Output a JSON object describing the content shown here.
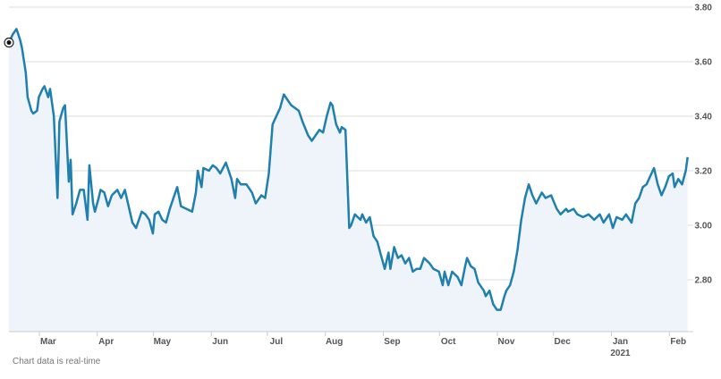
{
  "chart_data": {
    "type": "line",
    "color": "#1f7fae",
    "fill": "#eef4fa",
    "grid": true,
    "annotation": "2021",
    "footer": "Chart data is real-time",
    "xlim": [
      -21,
      345
    ],
    "ylim": [
      2.61,
      3.8
    ],
    "yticks": [
      {
        "value": 2.8,
        "label": "2.80"
      },
      {
        "value": 3,
        "label": "3.00"
      },
      {
        "value": 3.2,
        "label": "3.20"
      },
      {
        "value": 3.4,
        "label": "3.40"
      },
      {
        "value": 3.6,
        "label": "3.60"
      },
      {
        "value": 3.8,
        "label": "3.80"
      }
    ],
    "xticks": [
      {
        "value": 0,
        "label": "Mar"
      },
      {
        "value": 31,
        "label": "Apr"
      },
      {
        "value": 61,
        "label": "May"
      },
      {
        "value": 92,
        "label": "Jun"
      },
      {
        "value": 122,
        "label": "Jul"
      },
      {
        "value": 153,
        "label": "Aug"
      },
      {
        "value": 184,
        "label": "Sep"
      },
      {
        "value": 214,
        "label": "Oct"
      },
      {
        "value": 245,
        "label": "Nov"
      },
      {
        "value": 275,
        "label": "Dec"
      },
      {
        "value": 306,
        "label": "Jan"
      },
      {
        "value": 337,
        "label": "Feb"
      }
    ],
    "x": [
      -21,
      -19,
      -17,
      -15,
      -14,
      -12,
      -11,
      -9,
      -8,
      -6,
      -5,
      -3,
      -2,
      0,
      1,
      2,
      3,
      5,
      6,
      8,
      9,
      11,
      12,
      13,
      15,
      17,
      19,
      21,
      22,
      24,
      25,
      27,
      28,
      30,
      32,
      34,
      37,
      39,
      41,
      43,
      45,
      47,
      50,
      52,
      54,
      56,
      57,
      59,
      61,
      63,
      65,
      67,
      69,
      71,
      74,
      77,
      79,
      80,
      82,
      83,
      86,
      88,
      90,
      92,
      95,
      98,
      100,
      101,
      103,
      106,
      109,
      111,
      114,
      116,
      118,
      120,
      122,
      124,
      126,
      128,
      130,
      134,
      136,
      139,
      141,
      143,
      145,
      147,
      149,
      151,
      152,
      154,
      156,
      157,
      159,
      161,
      162,
      164,
      167,
      168,
      170,
      172,
      174,
      176,
      178,
      180,
      182,
      183,
      185,
      187,
      189,
      191,
      193,
      195,
      197,
      199,
      201,
      204,
      206,
      209,
      211,
      212,
      214,
      216,
      219,
      221,
      223,
      224,
      226,
      228,
      230,
      233,
      234,
      236,
      238,
      240,
      242,
      244,
      245,
      247,
      249,
      251,
      253,
      255,
      257,
      259,
      261,
      264,
      266,
      269,
      272,
      274,
      277,
      278,
      281,
      283,
      286,
      289,
      292,
      295,
      297,
      300,
      302,
      304,
      307,
      309,
      312,
      314,
      316,
      318,
      320,
      322,
      324,
      326,
      328,
      330,
      332,
      334,
      335,
      337,
      339,
      341,
      342
    ],
    "values": [
      3.67,
      3.7,
      3.72,
      3.68,
      3.65,
      3.56,
      3.47,
      3.42,
      3.41,
      3.42,
      3.47,
      3.5,
      3.51,
      3.47,
      3.5,
      3.45,
      3.4,
      3.1,
      3.38,
      3.43,
      3.44,
      3.16,
      3.24,
      3.04,
      3.08,
      3.13,
      3.13,
      3.02,
      3.22,
      3.08,
      3.05,
      3.1,
      3.13,
      3.12,
      3.07,
      3.11,
      3.13,
      3.1,
      3.13,
      3.07,
      3.01,
      2.99,
      3.05,
      3.04,
      3.02,
      2.97,
      3.04,
      3.05,
      3.02,
      3.01,
      3.06,
      3.1,
      3.14,
      3.07,
      3.06,
      3.05,
      3.12,
      3.2,
      3.14,
      3.21,
      3.2,
      3.22,
      3.21,
      3.19,
      3.23,
      3.17,
      3.1,
      3.17,
      3.15,
      3.15,
      3.12,
      3.08,
      3.11,
      3.1,
      3.19,
      3.37,
      3.4,
      3.43,
      3.48,
      3.46,
      3.44,
      3.42,
      3.38,
      3.33,
      3.31,
      3.33,
      3.35,
      3.34,
      3.4,
      3.45,
      3.44,
      3.37,
      3.34,
      3.36,
      3.35,
      2.99,
      3.0,
      3.04,
      3.02,
      3.04,
      3.01,
      3.03,
      2.96,
      2.94,
      2.89,
      2.84,
      2.9,
      2.84,
      2.92,
      2.88,
      2.89,
      2.86,
      2.88,
      2.83,
      2.84,
      2.84,
      2.88,
      2.86,
      2.84,
      2.83,
      2.78,
      2.83,
      2.78,
      2.83,
      2.81,
      2.78,
      2.85,
      2.88,
      2.85,
      2.84,
      2.79,
      2.76,
      2.74,
      2.76,
      2.71,
      2.69,
      2.69,
      2.74,
      2.76,
      2.78,
      2.83,
      2.91,
      3.02,
      3.1,
      3.15,
      3.11,
      3.08,
      3.12,
      3.1,
      3.11,
      3.06,
      3.04,
      3.06,
      3.05,
      3.06,
      3.04,
      3.03,
      3.04,
      3.02,
      3.04,
      3.01,
      3.04,
      2.99,
      3.03,
      3.02,
      3.04,
      3.01,
      3.08,
      3.1,
      3.14,
      3.15,
      3.18,
      3.21,
      3.15,
      3.11,
      3.14,
      3.18,
      3.19,
      3.14,
      3.17,
      3.15,
      3.2,
      3.25
    ]
  }
}
